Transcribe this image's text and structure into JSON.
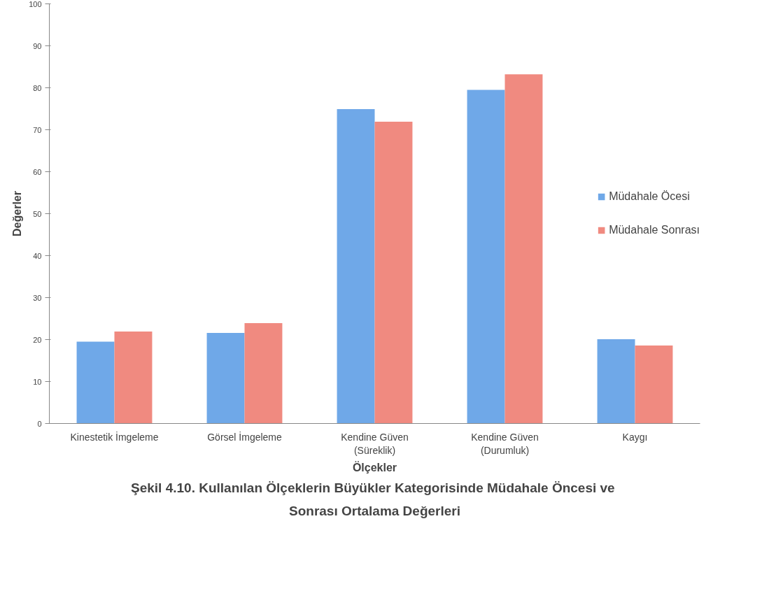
{
  "chart_data": {
    "type": "bar",
    "title": "Şekil 4.10.  Kullanılan Ölçeklerin Büyükler Kategorisinde Müdahale Öncesi ve\nSonrası Ortalama Değerleri",
    "xlabel": "Ölçekler",
    "ylabel": "Değerler",
    "categories": [
      "Kinestetik İmgeleme",
      "Görsel İmgeleme",
      "Kendine Güven\n(Süreklik)",
      "Kendine Güven\n(Durumluk)",
      "Kaygı"
    ],
    "series": [
      {
        "name": "Müdahale Öcesi",
        "color": "#6fa8e8",
        "values": [
          19.5,
          21.6,
          74.9,
          79.5,
          20.1
        ]
      },
      {
        "name": "Müdahale Sonrası",
        "color": "#f08a80",
        "values": [
          21.9,
          23.9,
          71.9,
          83.2,
          18.6
        ]
      }
    ],
    "ylim": [
      0,
      100
    ],
    "yticks": [
      0,
      10,
      20,
      30,
      40,
      50,
      60,
      70,
      80,
      90,
      100
    ],
    "legend": "right",
    "grid": false
  }
}
